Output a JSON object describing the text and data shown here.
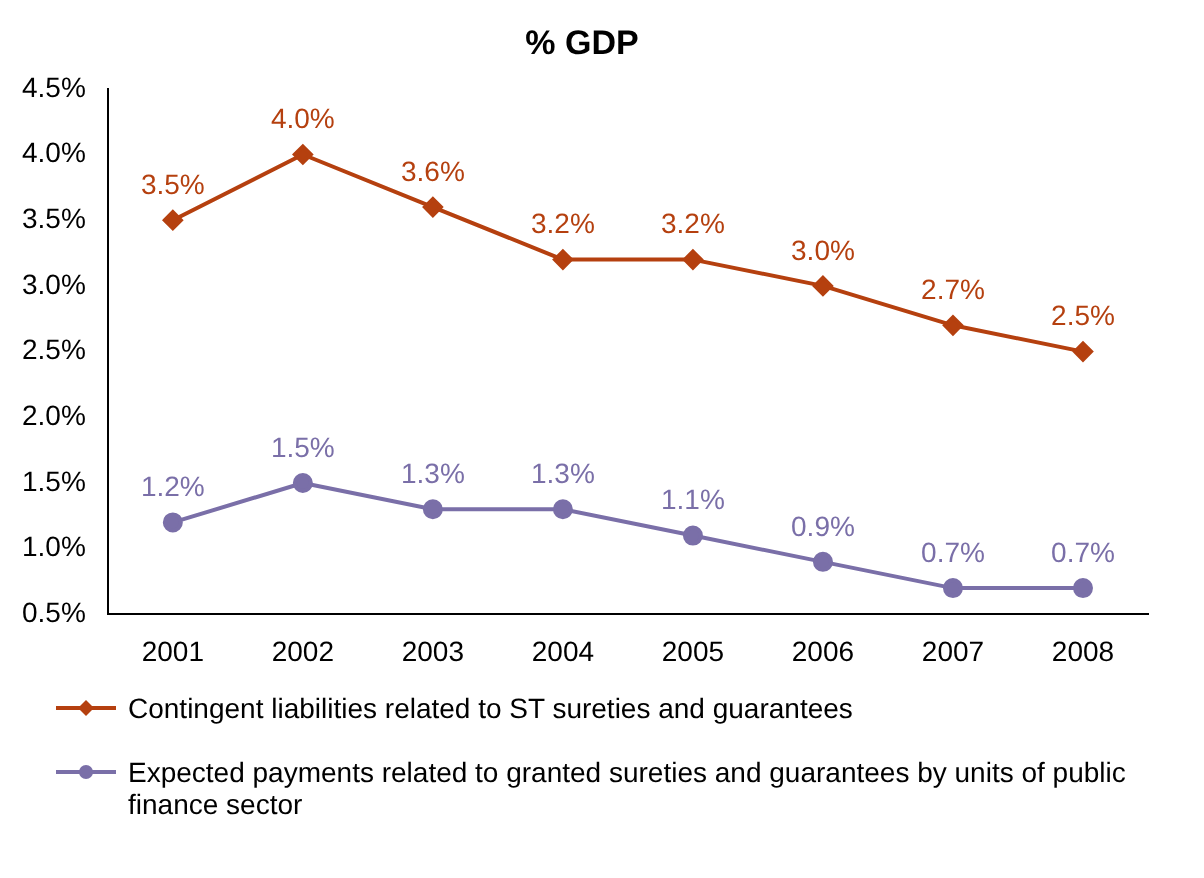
{
  "chart_data": {
    "type": "line",
    "title": "% GDP",
    "categories": [
      "2001",
      "2002",
      "2003",
      "2004",
      "2005",
      "2006",
      "2007",
      "2008"
    ],
    "series": [
      {
        "name": "Contingent liabilities related to ST sureties and guarantees",
        "color": "#b5400f",
        "marker": "diamond",
        "values": [
          3.5,
          4.0,
          3.6,
          3.2,
          3.2,
          3.0,
          2.7,
          2.5
        ],
        "value_labels": [
          "3.5%",
          "4.0%",
          "3.6%",
          "3.2%",
          "3.2%",
          "3.0%",
          "2.7%",
          "2.5%"
        ]
      },
      {
        "name": "Expected payments related to granted sureties and guarantees by units of public finance sector",
        "color": "#7a6fa8",
        "marker": "circle",
        "values": [
          1.2,
          1.5,
          1.3,
          1.3,
          1.1,
          0.9,
          0.7,
          0.7
        ],
        "value_labels": [
          "1.2%",
          "1.5%",
          "1.3%",
          "1.3%",
          "1.1%",
          "0.9%",
          "0.7%",
          "0.7%"
        ]
      }
    ],
    "ylim": [
      0.5,
      4.5
    ],
    "yticks": [
      {
        "value": 0.5,
        "label": "0.5%"
      },
      {
        "value": 1,
        "label": "1.0%"
      },
      {
        "value": 1.5,
        "label": "1.5%"
      },
      {
        "value": 2,
        "label": "2.0%"
      },
      {
        "value": 2.5,
        "label": "2.5%"
      },
      {
        "value": 3,
        "label": "3.0%"
      },
      {
        "value": 3.5,
        "label": "3.5%"
      },
      {
        "value": 4,
        "label": "4.0%"
      },
      {
        "value": 4.5,
        "label": "4.5%"
      }
    ],
    "grid": false,
    "legend": "bottom",
    "line_style": "solid"
  }
}
